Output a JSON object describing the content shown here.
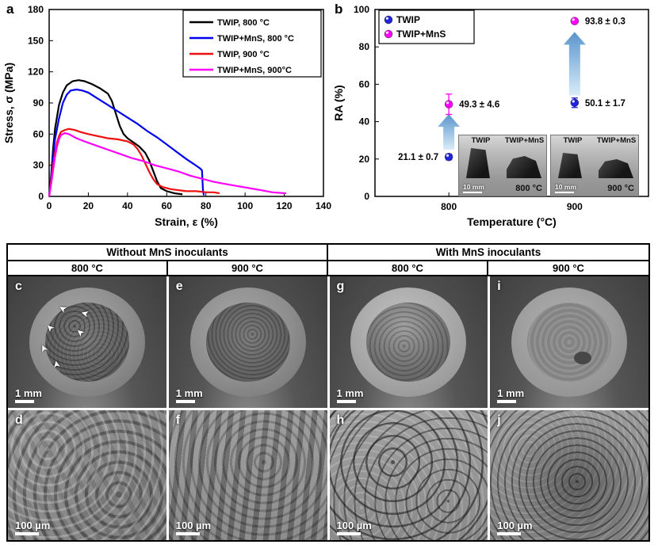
{
  "panel_a": {
    "label": "a"
  },
  "panel_b": {
    "label": "b"
  },
  "chart_data": [
    {
      "id": "stress-strain",
      "type": "line",
      "title": "",
      "xlabel": "Strain, ε (%)",
      "ylabel": "Stress, σ (MPa)",
      "xlim": [
        0,
        140
      ],
      "ylim": [
        0,
        180
      ],
      "xticks": [
        0,
        20,
        40,
        60,
        80,
        100,
        120,
        140
      ],
      "yticks": [
        0,
        30,
        60,
        90,
        120,
        150,
        180
      ],
      "grid": false,
      "legend_position": "top-right",
      "series": [
        {
          "name": "TWIP, 800 °C",
          "color": "#000000",
          "points": [
            [
              0,
              0
            ],
            [
              1,
              20
            ],
            [
              2,
              45
            ],
            [
              3,
              65
            ],
            [
              5,
              88
            ],
            [
              7,
              100
            ],
            [
              9,
              107
            ],
            [
              12,
              111
            ],
            [
              15,
              112
            ],
            [
              18,
              111
            ],
            [
              22,
              108
            ],
            [
              26,
              104
            ],
            [
              30,
              99
            ],
            [
              32,
              92
            ],
            [
              34,
              80
            ],
            [
              36,
              68
            ],
            [
              38,
              60
            ],
            [
              40,
              56
            ],
            [
              43,
              52
            ],
            [
              46,
              48
            ],
            [
              49,
              42
            ],
            [
              51,
              35
            ],
            [
              53,
              25
            ],
            [
              55,
              15
            ],
            [
              57,
              8
            ],
            [
              60,
              5
            ],
            [
              64,
              3
            ],
            [
              68,
              2
            ]
          ]
        },
        {
          "name": "TWIP+MnS, 800 °C",
          "color": "#0000ee",
          "points": [
            [
              0,
              0
            ],
            [
              1,
              18
            ],
            [
              2,
              38
            ],
            [
              3,
              55
            ],
            [
              5,
              75
            ],
            [
              7,
              90
            ],
            [
              9,
              98
            ],
            [
              11,
              102
            ],
            [
              14,
              103
            ],
            [
              17,
              102
            ],
            [
              20,
              100
            ],
            [
              25,
              94
            ],
            [
              30,
              88
            ],
            [
              35,
              82
            ],
            [
              40,
              76
            ],
            [
              45,
              70
            ],
            [
              50,
              63
            ],
            [
              55,
              57
            ],
            [
              60,
              50
            ],
            [
              65,
              43
            ],
            [
              70,
              36
            ],
            [
              74,
              31
            ],
            [
              77,
              27
            ],
            [
              78,
              25
            ],
            [
              78.5,
              6
            ],
            [
              79,
              1
            ]
          ]
        },
        {
          "name": "TWIP, 900 °C",
          "color": "#ee1111",
          "points": [
            [
              0,
              0
            ],
            [
              1,
              15
            ],
            [
              2,
              30
            ],
            [
              3,
              42
            ],
            [
              4,
              52
            ],
            [
              5,
              58
            ],
            [
              6,
              62
            ],
            [
              8,
              64
            ],
            [
              10,
              65
            ],
            [
              13,
              64
            ],
            [
              16,
              62
            ],
            [
              20,
              60
            ],
            [
              25,
              58
            ],
            [
              30,
              56
            ],
            [
              35,
              55
            ],
            [
              40,
              53
            ],
            [
              43,
              50
            ],
            [
              45,
              46
            ],
            [
              47,
              40
            ],
            [
              49,
              32
            ],
            [
              51,
              24
            ],
            [
              53,
              17
            ],
            [
              55,
              12
            ],
            [
              58,
              9
            ],
            [
              62,
              7
            ],
            [
              66,
              6
            ],
            [
              70,
              5
            ],
            [
              75,
              5
            ],
            [
              80,
              4
            ],
            [
              84,
              4
            ],
            [
              87,
              3
            ]
          ]
        },
        {
          "name": "TWIP+MnS, 900°C",
          "color": "#ff00ff",
          "points": [
            [
              0,
              0
            ],
            [
              1,
              12
            ],
            [
              2,
              25
            ],
            [
              3,
              38
            ],
            [
              4,
              48
            ],
            [
              5,
              55
            ],
            [
              6,
              59
            ],
            [
              8,
              61
            ],
            [
              10,
              60
            ],
            [
              14,
              56
            ],
            [
              18,
              53
            ],
            [
              24,
              49
            ],
            [
              30,
              45
            ],
            [
              36,
              41
            ],
            [
              42,
              37
            ],
            [
              48,
              34
            ],
            [
              54,
              30
            ],
            [
              60,
              27
            ],
            [
              66,
              24
            ],
            [
              72,
              20
            ],
            [
              78,
              17
            ],
            [
              84,
              14
            ],
            [
              90,
              12
            ],
            [
              96,
              10
            ],
            [
              102,
              8
            ],
            [
              108,
              6
            ],
            [
              114,
              4
            ],
            [
              121,
              3
            ]
          ]
        }
      ]
    },
    {
      "id": "ra-temperature",
      "type": "scatter",
      "xlabel": "Temperature (°C)",
      "ylabel": "RA (%)",
      "ylim": [
        0,
        100
      ],
      "yticks": [
        0,
        20,
        40,
        60,
        80,
        100
      ],
      "categories": [
        800,
        900
      ],
      "legend_position": "top-left",
      "series": [
        {
          "name": "TWIP",
          "color": "#2222dd",
          "values": [
            21.1,
            50.1
          ],
          "errors": [
            0.7,
            1.7
          ]
        },
        {
          "name": "TWIP+MnS",
          "color": "#ff00ff",
          "values": [
            49.3,
            93.8
          ],
          "errors": [
            4.6,
            0.3
          ]
        }
      ],
      "annotations": [
        {
          "cat": 800,
          "y": 21.1,
          "text": "21.1 ± 0.7",
          "side": "left"
        },
        {
          "cat": 800,
          "y": 49.3,
          "text": "49.3 ± 4.6",
          "side": "right"
        },
        {
          "cat": 900,
          "y": 50.1,
          "text": "50.1 ± 1.7",
          "side": "right"
        },
        {
          "cat": 900,
          "y": 93.8,
          "text": "93.8 ± 0.3",
          "side": "right"
        }
      ],
      "arrows": [
        {
          "cat": 800,
          "from": 25,
          "to": 44
        },
        {
          "cat": 900,
          "from": 54,
          "to": 88
        }
      ],
      "arrow_gradient": [
        "#d9ecf8",
        "#5a95cc"
      ]
    }
  ],
  "panel_b_inset": {
    "groups": [
      {
        "samples": [
          "TWIP",
          "TWIP+MnS"
        ],
        "scale": "10 mm",
        "temp": "800 °C"
      },
      {
        "samples": [
          "TWIP",
          "TWIP+MnS"
        ],
        "scale": "10 mm",
        "temp": "900 °C"
      }
    ]
  },
  "sem_grid": {
    "group_headers": [
      "Without MnS inoculants",
      "With MnS inoculants"
    ],
    "temp_headers": [
      "800 °C",
      "900 °C",
      "800 °C",
      "900 °C"
    ],
    "rows": [
      {
        "cells": [
          {
            "letter": "c",
            "scale": "1 mm"
          },
          {
            "letter": "e",
            "scale": "1 mm"
          },
          {
            "letter": "g",
            "scale": "1 mm"
          },
          {
            "letter": "i",
            "scale": "1 mm"
          }
        ]
      },
      {
        "cells": [
          {
            "letter": "d",
            "scale": "100 µm"
          },
          {
            "letter": "f",
            "scale": "100 µm"
          },
          {
            "letter": "h",
            "scale": "100 µm"
          },
          {
            "letter": "j",
            "scale": "100 µm"
          }
        ]
      }
    ]
  },
  "icons": {
    "defect_arrow": "➤"
  }
}
